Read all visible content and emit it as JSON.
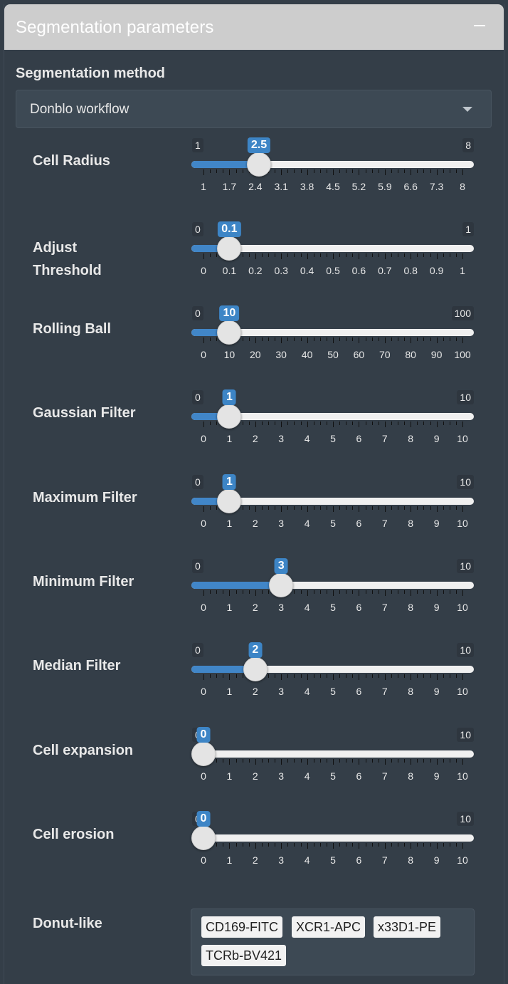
{
  "panel": {
    "title": "Segmentation parameters",
    "collapse_icon": "minus-icon"
  },
  "method": {
    "label": "Segmentation method",
    "value": "Donblo workflow",
    "caret_icon": "caret-down-icon"
  },
  "accent_color": "#3d85c6",
  "sliders": [
    {
      "label": "Cell Radius",
      "min": "1",
      "max": "8",
      "value": "2.5",
      "ticks": [
        "1",
        "1.7",
        "2.4",
        "3.1",
        "3.8",
        "4.5",
        "5.2",
        "5.9",
        "6.6",
        "7.3",
        "8"
      ]
    },
    {
      "label": "Adjust Threshold",
      "min": "0",
      "max": "1",
      "value": "0.1",
      "ticks": [
        "0",
        "0.1",
        "0.2",
        "0.3",
        "0.4",
        "0.5",
        "0.6",
        "0.7",
        "0.8",
        "0.9",
        "1"
      ]
    },
    {
      "label": "Rolling Ball",
      "min": "0",
      "max": "100",
      "value": "10",
      "ticks": [
        "0",
        "10",
        "20",
        "30",
        "40",
        "50",
        "60",
        "70",
        "80",
        "90",
        "100"
      ]
    },
    {
      "label": "Gaussian Filter",
      "min": "0",
      "max": "10",
      "value": "1",
      "ticks": [
        "0",
        "1",
        "2",
        "3",
        "4",
        "5",
        "6",
        "7",
        "8",
        "9",
        "10"
      ]
    },
    {
      "label": "Maximum Filter",
      "min": "0",
      "max": "10",
      "value": "1",
      "ticks": [
        "0",
        "1",
        "2",
        "3",
        "4",
        "5",
        "6",
        "7",
        "8",
        "9",
        "10"
      ]
    },
    {
      "label": "Minimum Filter",
      "min": "0",
      "max": "10",
      "value": "3",
      "ticks": [
        "0",
        "1",
        "2",
        "3",
        "4",
        "5",
        "6",
        "7",
        "8",
        "9",
        "10"
      ]
    },
    {
      "label": "Median Filter",
      "min": "0",
      "max": "10",
      "value": "2",
      "ticks": [
        "0",
        "1",
        "2",
        "3",
        "4",
        "5",
        "6",
        "7",
        "8",
        "9",
        "10"
      ]
    },
    {
      "label": "Cell expansion",
      "min": "0",
      "max": "10",
      "value": "0",
      "ticks": [
        "0",
        "1",
        "2",
        "3",
        "4",
        "5",
        "6",
        "7",
        "8",
        "9",
        "10"
      ]
    },
    {
      "label": "Cell erosion",
      "min": "0",
      "max": "10",
      "value": "0",
      "ticks": [
        "0",
        "1",
        "2",
        "3",
        "4",
        "5",
        "6",
        "7",
        "8",
        "9",
        "10"
      ]
    }
  ],
  "donut": {
    "label": "Donut-like",
    "tags": [
      "CD169-FITC",
      "XCR1-APC",
      "x33D1-PE",
      "TCRb-BV421"
    ]
  }
}
